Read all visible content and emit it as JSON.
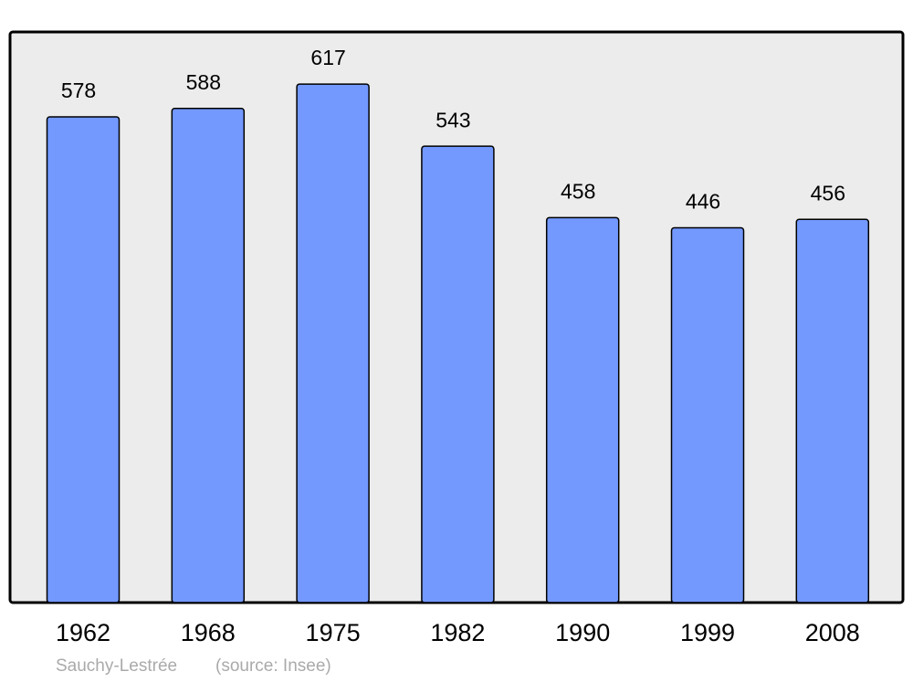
{
  "chart_data": {
    "type": "bar",
    "categories": [
      "1962",
      "1968",
      "1975",
      "1982",
      "1990",
      "1999",
      "2008"
    ],
    "values": [
      578,
      588,
      617,
      543,
      458,
      446,
      456
    ],
    "color": "#7399ff",
    "ylim": [
      0,
      679
    ],
    "subtitle": "Sauchy-Lestrée",
    "source": "(source: Insee)"
  }
}
